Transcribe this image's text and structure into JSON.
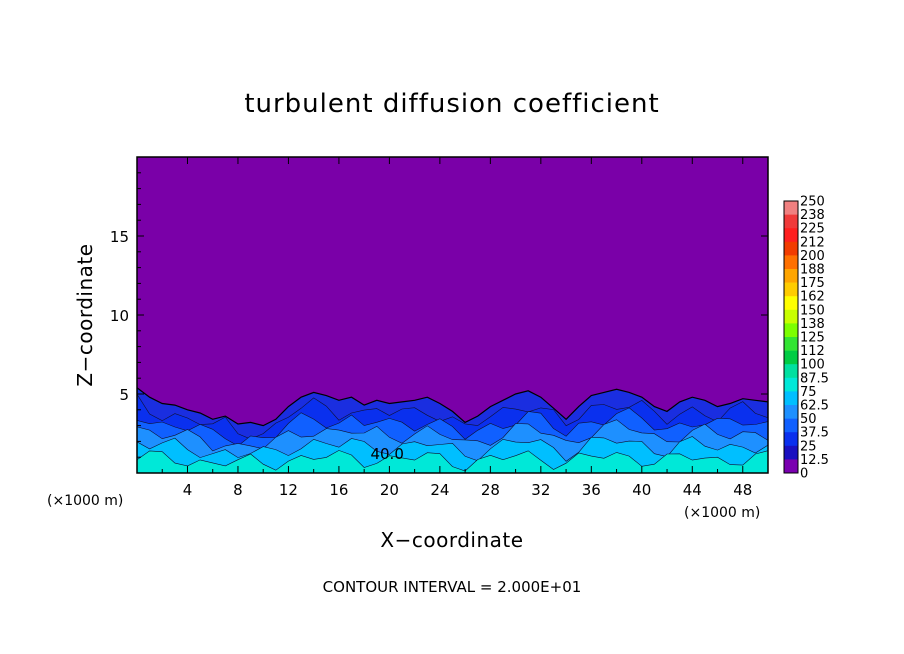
{
  "chart_data": {
    "type": "heatmap",
    "title": "turbulent diffusion coefficient",
    "xlabel": "X−coordinate",
    "ylabel": "Z−coordinate",
    "x_unit": "(×1000 m)",
    "z_unit": "(×1000 m)",
    "xlim": [
      0,
      50
    ],
    "ylim": [
      0,
      20
    ],
    "x_ticks": [
      "4",
      "8",
      "12",
      "16",
      "20",
      "24",
      "28",
      "32",
      "36",
      "40",
      "44",
      "48"
    ],
    "y_ticks": [
      "5",
      "10",
      "15"
    ],
    "contour_label": "40.0",
    "footer": "CONTOUR INTERVAL = 2.000E+01",
    "colorbar": {
      "labels": [
        "250",
        "238",
        "225",
        "212",
        "200",
        "188",
        "175",
        "162",
        "150",
        "138",
        "125",
        "112",
        "100",
        "87.5",
        "75",
        "62.5",
        "50",
        "37.5",
        "25",
        "12.5",
        "0"
      ],
      "colors": [
        "#f08080",
        "#f03a3a",
        "#ff1f1f",
        "#f23c00",
        "#ff7000",
        "#ffa500",
        "#ffcc00",
        "#ffff00",
        "#c8ff00",
        "#7cff00",
        "#33e533",
        "#00cc44",
        "#00e0a0",
        "#00e8d8",
        "#00bfff",
        "#1e90ff",
        "#1060ff",
        "#0a30ee",
        "#1a10c0",
        "#7a00b0"
      ]
    },
    "background_color": "#7a00a8",
    "layer_colors": [
      "#1a2ee0",
      "#0a30ee",
      "#1060ff",
      "#1e90ff",
      "#00bfff",
      "#00e8d8"
    ],
    "turbulent_layer_top_z": [
      5.4,
      4.8,
      4.4,
      4.3,
      4.0,
      3.8,
      3.4,
      3.6,
      3.1,
      3.2,
      3.0,
      3.4,
      4.2,
      4.8,
      5.1,
      4.9,
      4.6,
      4.8,
      4.3,
      4.6,
      4.4,
      4.5,
      4.6,
      4.8,
      4.4,
      3.9,
      3.2,
      3.6,
      4.2,
      4.6,
      5.0,
      5.2,
      4.8,
      4.1,
      3.4,
      4.2,
      4.9,
      5.1,
      5.3,
      5.1,
      4.8,
      4.2,
      3.9,
      4.5,
      4.8,
      4.6,
      4.2,
      4.4,
      4.7,
      4.6,
      4.5
    ]
  }
}
